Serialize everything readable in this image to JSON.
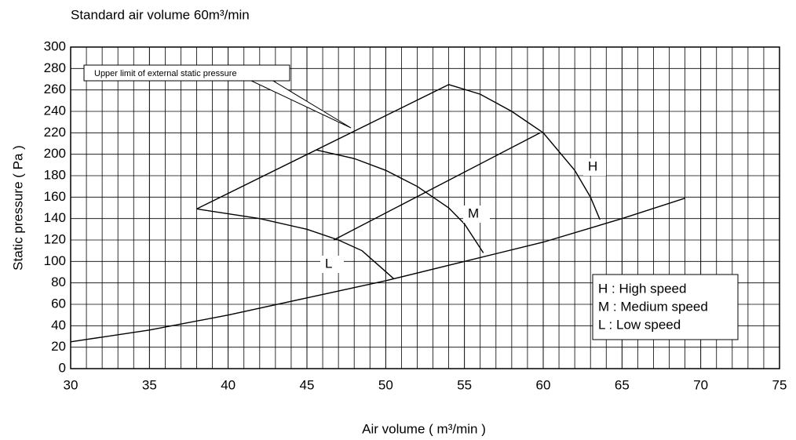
{
  "chart_data": {
    "type": "line",
    "title": "Standard air volume 60m³/min",
    "x_label": "Air volume ( m³/min )",
    "y_label": "Static pressure ( Pa )",
    "xlim": [
      30,
      75
    ],
    "ylim": [
      0,
      300
    ],
    "xticks": [
      30,
      35,
      40,
      45,
      50,
      55,
      60,
      65,
      70,
      75
    ],
    "yticks": [
      0,
      20,
      40,
      60,
      80,
      100,
      120,
      140,
      160,
      180,
      200,
      220,
      240,
      260,
      280,
      300
    ],
    "xgrid_step": 1,
    "grid": true,
    "callout": "Upper limit of external static pressure",
    "curve_labels": [
      "H",
      "M",
      "L"
    ],
    "legend": [
      "H : High speed",
      "M : Medium speed",
      "L : Low speed"
    ],
    "series": [
      {
        "color": "#000000",
        "x": [
          54,
          56,
          58,
          60,
          62,
          63,
          63.6
        ],
        "values": [
          265,
          256,
          240,
          220,
          185,
          160,
          139
        ]
      },
      {
        "color": "#000000",
        "x": [
          45.6,
          48,
          50,
          52,
          54,
          55,
          56.2
        ],
        "values": [
          204,
          196,
          185,
          170,
          150,
          135,
          108
        ]
      },
      {
        "color": "#000000",
        "x": [
          38,
          42,
          45,
          47,
          48.5,
          49.5,
          50.5
        ],
        "values": [
          149,
          140,
          130,
          120,
          110,
          97,
          84
        ]
      },
      {
        "color": "#000000",
        "x": [
          38,
          54
        ],
        "values": [
          149,
          265
        ]
      },
      {
        "color": "#000000",
        "x": [
          46.7,
          59.8
        ],
        "values": [
          120,
          220
        ]
      },
      {
        "color": "#000000",
        "x": [
          30,
          35,
          40,
          45,
          50,
          55,
          60,
          65,
          69
        ],
        "values": [
          25,
          36,
          50,
          66,
          82,
          100,
          118,
          140,
          159
        ]
      }
    ]
  }
}
